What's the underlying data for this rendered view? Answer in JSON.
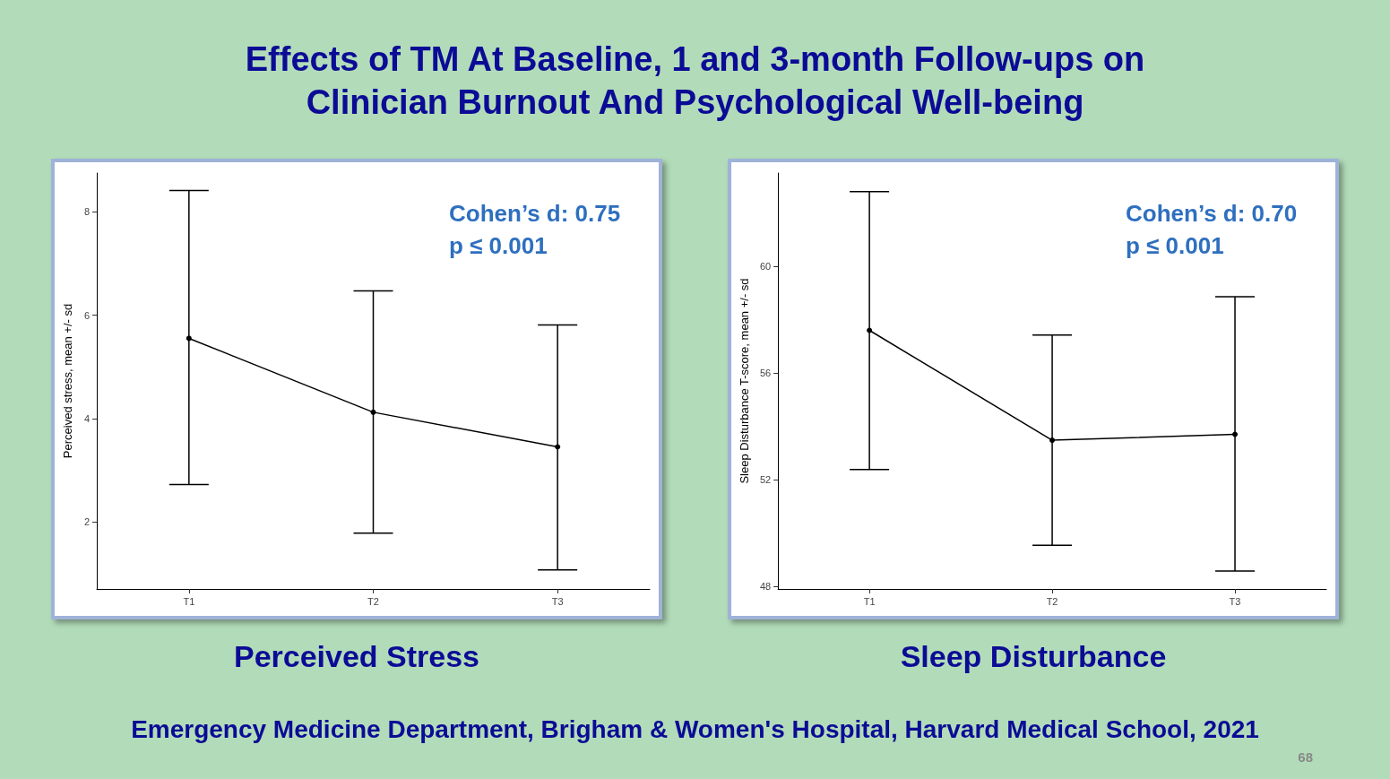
{
  "chart_data": [
    {
      "type": "other",
      "title": "Effects of TM At Baseline, 1 and 3-month Follow-ups on Clinician Burnout And Psychological Well-being",
      "annotations": [
        "Emergency Medicine Department, Brigham & Women's Hospital, Harvard Medical School, 2021",
        "68"
      ]
    },
    {
      "type": "line",
      "title": "Perceived Stress",
      "ylabel": "Perceived stress, mean +/- sd",
      "categories": [
        "T1",
        "T2",
        "T3"
      ],
      "marker": "circle",
      "grid": false,
      "series": [
        {
          "color": "#000000",
          "values": [
            5.55,
            4.12,
            3.45
          ],
          "errors": [
            [
              2.72,
              8.41
            ],
            [
              1.78,
              6.47
            ],
            [
              1.07,
              5.81
            ]
          ]
        }
      ],
      "ylim": [
        0.7,
        8.75
      ],
      "yticks": [
        2,
        4,
        6,
        8
      ],
      "annotations": [
        "Cohen’s d: 0.75",
        "p ≤ 0.001"
      ]
    },
    {
      "type": "line",
      "title": "Sleep Disturbance",
      "ylabel": "Sleep Disturbance T-score, mean +/- sd",
      "categories": [
        "T1",
        "T2",
        "T3"
      ],
      "marker": "circle",
      "grid": false,
      "series": [
        {
          "color": "#000000",
          "values": [
            57.6,
            53.48,
            53.7
          ],
          "errors": [
            [
              52.38,
              62.8
            ],
            [
              49.54,
              57.42
            ],
            [
              48.57,
              58.86
            ]
          ]
        }
      ],
      "ylim": [
        47.9,
        63.5
      ],
      "yticks": [
        48,
        52,
        56,
        60
      ],
      "annotations": [
        "Cohen’s d: 0.70",
        "p ≤ 0.001"
      ]
    }
  ]
}
